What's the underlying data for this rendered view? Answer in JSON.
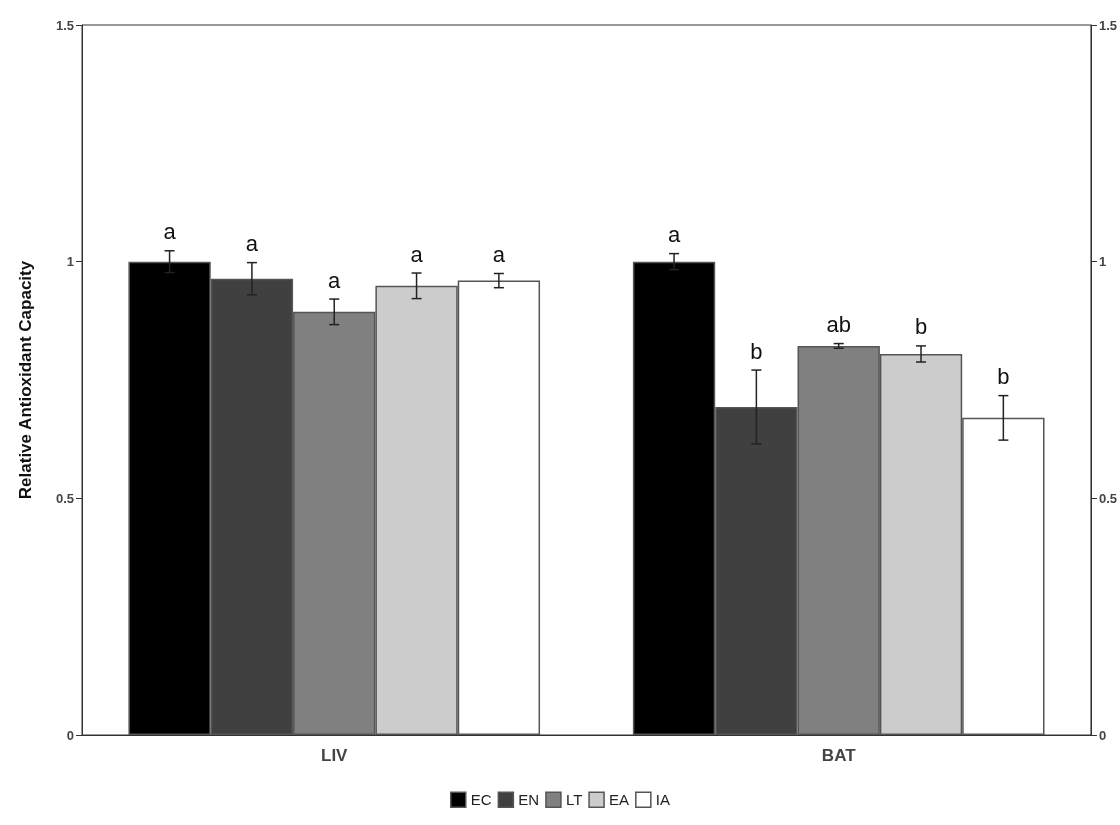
{
  "chart_data": {
    "type": "bar",
    "ylabel": "Relative Antioxidant Capacity",
    "categories": [
      "LIV",
      "BAT"
    ],
    "series": [
      {
        "name": "EC",
        "color": "#000000",
        "values": [
          1.0,
          1.0
        ],
        "errors": [
          0.023,
          0.017
        ],
        "value_labels": [
          "a",
          "a"
        ]
      },
      {
        "name": "EN",
        "color": "#404040",
        "values": [
          0.964,
          0.693
        ],
        "errors": [
          0.034,
          0.078
        ],
        "value_labels": [
          "a",
          "b"
        ]
      },
      {
        "name": "LT",
        "color": "#808080",
        "values": [
          0.894,
          0.822
        ],
        "errors": [
          0.027,
          0.005
        ],
        "value_labels": [
          "a",
          "ab"
        ]
      },
      {
        "name": "EA",
        "color": "#cccccc",
        "values": [
          0.949,
          0.805
        ],
        "errors": [
          0.027,
          0.017
        ],
        "value_labels": [
          "a",
          "b"
        ]
      },
      {
        "name": "IA",
        "color": "#ffffff",
        "values": [
          0.96,
          0.67
        ],
        "errors": [
          0.015,
          0.047
        ],
        "value_labels": [
          "a",
          "b"
        ]
      }
    ],
    "ylim": [
      0,
      1.5
    ],
    "yticks": [
      0,
      0.5,
      1,
      1.5
    ],
    "y2lim": [
      0,
      1.5
    ],
    "y2ticks": [
      0,
      0.5,
      1,
      1.5
    ],
    "grid": false,
    "legend": "bottom"
  }
}
